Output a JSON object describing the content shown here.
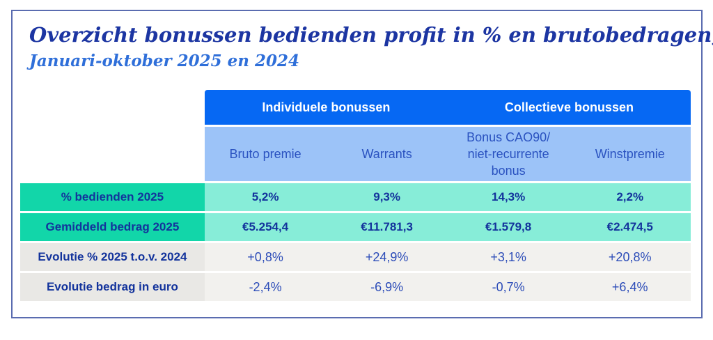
{
  "title": "Overzicht bonussen bedienden profit in % en brutobedragen,",
  "subtitle": "Januari-oktober 2025 en 2024",
  "colors": {
    "card_border": "#5a6cb0",
    "title_text": "#1c35a2",
    "subtitle_text": "#2f6fd9",
    "group_header_bg": "#0668f3",
    "group_header_text": "#ffffff",
    "sub_header_bg": "#9cc3f8",
    "sub_header_text": "#2a52c0",
    "teal_label_bg": "#12d6a9",
    "teal_value_bg": "#87edd8",
    "gray_label_bg": "#e9e8e5",
    "gray_value_bg": "#f2f1ee",
    "table_text": "#13339c"
  },
  "table": {
    "group_headers": [
      {
        "label": "Individuele bonussen",
        "span": 2
      },
      {
        "label": "Collectieve bonussen",
        "span": 2
      }
    ],
    "column_headers": [
      "Bruto premie",
      "Warrants",
      "Bonus CAO90/ niet-recurrente bonus",
      "Winstpremie"
    ],
    "rows": [
      {
        "label": "% bedienden 2025",
        "style": "teal",
        "values": [
          "5,2%",
          "9,3%",
          "14,3%",
          "2,2%"
        ]
      },
      {
        "label": "Gemiddeld bedrag 2025",
        "style": "teal",
        "values": [
          "€5.254,4",
          "€11.781,3",
          "€1.579,8",
          "€2.474,5"
        ]
      },
      {
        "label": "Evolutie % 2025 t.o.v. 2024",
        "style": "gray",
        "values": [
          "+0,8%",
          "+24,9%",
          "+3,1%",
          "+20,8%"
        ]
      },
      {
        "label": "Evolutie bedrag in euro",
        "style": "gray",
        "values": [
          "-2,4%",
          "-6,9%",
          "-0,7%",
          "+6,4%"
        ]
      }
    ]
  },
  "chart_data": {
    "type": "table",
    "title": "Overzicht bonussen bedienden profit in % en brutobedragen, Januari-oktober 2025 en 2024",
    "column_groups": [
      {
        "label": "Individuele bonussen",
        "columns": [
          "Bruto premie",
          "Warrants"
        ]
      },
      {
        "label": "Collectieve bonussen",
        "columns": [
          "Bonus CAO90/ niet-recurrente bonus",
          "Winstpremie"
        ]
      }
    ],
    "columns": [
      "Bruto premie",
      "Warrants",
      "Bonus CAO90/ niet-recurrente bonus",
      "Winstpremie"
    ],
    "rows": [
      {
        "label": "% bedienden 2025",
        "values": [
          5.2,
          9.3,
          14.3,
          2.2
        ],
        "unit": "%"
      },
      {
        "label": "Gemiddeld bedrag 2025",
        "values": [
          5254.4,
          11781.3,
          1579.8,
          2474.5
        ],
        "unit": "EUR"
      },
      {
        "label": "Evolutie % 2025 t.o.v. 2024",
        "values": [
          0.8,
          24.9,
          3.1,
          20.8
        ],
        "unit": "%"
      },
      {
        "label": "Evolutie bedrag in euro",
        "values": [
          -2.4,
          -6.9,
          -0.7,
          6.4
        ],
        "unit": "%"
      }
    ]
  }
}
